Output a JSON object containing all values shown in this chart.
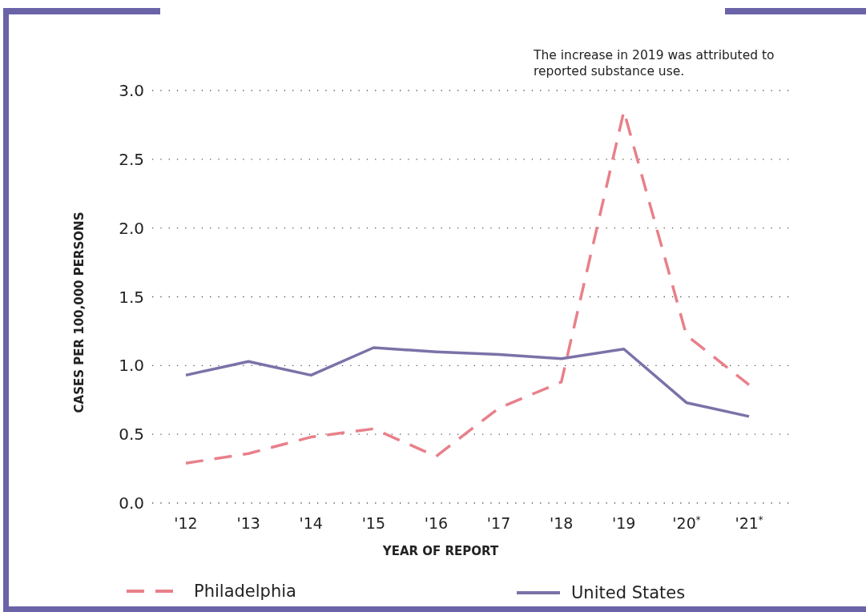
{
  "chart_data": {
    "type": "line",
    "xlabel": "YEAR OF REPORT",
    "ylabel": "CASES PER 100,000 PERSONS",
    "annotations": [
      "The increase in 2019 was attributed to reported substance use."
    ],
    "categories": [
      "'12",
      "'13",
      "'14",
      "'15",
      "'16",
      "'17",
      "'18",
      "'19",
      "'20$^{*}$",
      "'21$^{*}$"
    ],
    "series": [
      {
        "name": "Philadelphia",
        "color": "#e8808a",
        "line_style": "dashed",
        "values": [
          0.29,
          0.36,
          0.48,
          0.54,
          0.34,
          0.69,
          0.88,
          2.85,
          1.22,
          0.86
        ]
      },
      {
        "name": "United States",
        "color": "#7b72a8",
        "line_style": "solid",
        "values": [
          0.93,
          1.03,
          0.93,
          1.13,
          1.1,
          1.08,
          1.05,
          1.12,
          0.73,
          0.63
        ]
      }
    ],
    "ylim": [
      0,
      3
    ],
    "yticks": [
      {
        "value": 0,
        "label": "0.0"
      },
      {
        "value": 0.5,
        "label": "0.5"
      },
      {
        "value": 1,
        "label": "1.0"
      },
      {
        "value": 1.5,
        "label": "1.5"
      },
      {
        "value": 2,
        "label": "2.0"
      },
      {
        "value": 2.5,
        "label": "2.5"
      },
      {
        "value": 3,
        "label": "3.0"
      }
    ],
    "grid": "y",
    "legend": "bottom",
    "marker": "none"
  }
}
